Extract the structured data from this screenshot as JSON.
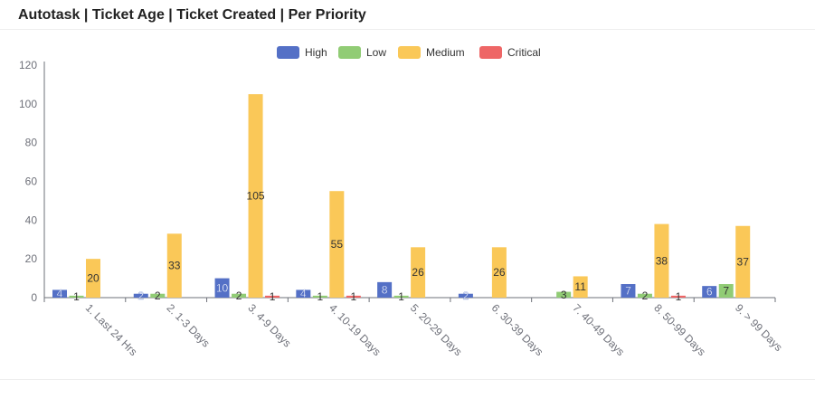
{
  "header": {
    "title": "Autotask | Ticket Age | Ticket Created | Per Priority"
  },
  "chart_data": {
    "type": "bar",
    "categories": [
      "1. Last 24 Hrs",
      "2. 1-3 Days",
      "3. 4-9 Days",
      "4. 10-19 Days",
      "5. 20-29 Days",
      "6. 30-39 Days",
      "7. 40-49 Days",
      "8. 50-99 Days",
      "9. > 99 Days"
    ],
    "series": [
      {
        "name": "High",
        "color": "#5470c6",
        "values": [
          4,
          2,
          10,
          4,
          8,
          2,
          null,
          7,
          6
        ]
      },
      {
        "name": "Low",
        "color": "#91cc75",
        "values": [
          1,
          2,
          2,
          1,
          1,
          null,
          3,
          2,
          7
        ]
      },
      {
        "name": "Medium",
        "color": "#fac858",
        "values": [
          20,
          33,
          105,
          55,
          26,
          26,
          11,
          38,
          37
        ]
      },
      {
        "name": "Critical",
        "color": "#ee6666",
        "values": [
          null,
          null,
          1,
          1,
          null,
          null,
          null,
          1,
          null
        ]
      }
    ],
    "ylim": [
      0,
      120
    ],
    "yticks": [
      0,
      20,
      40,
      60,
      80,
      100,
      120
    ],
    "legend": "top-center",
    "grid": false
  }
}
